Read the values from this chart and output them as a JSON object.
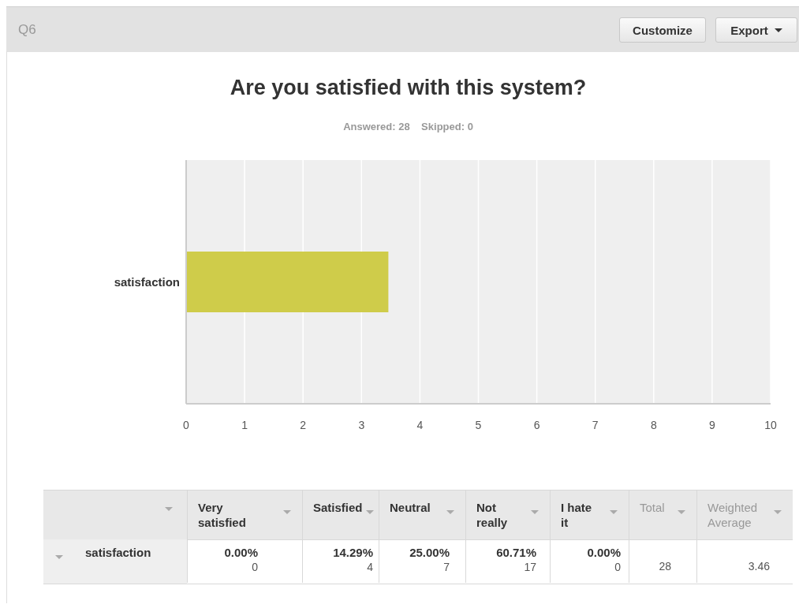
{
  "chart_data": {
    "type": "bar",
    "orientation": "horizontal",
    "title": "Are you satisfied with this system?",
    "subtitle": "Answered: 28    Skipped: 0",
    "categories": [
      "satisfaction"
    ],
    "values": [
      3.46
    ],
    "color": "#cfcc4a",
    "xlim": [
      0,
      10
    ],
    "xticks": [
      0,
      1,
      2,
      3,
      4,
      5,
      6,
      7,
      8,
      9,
      10
    ],
    "grid": "x",
    "annotations": [
      "Q6",
      "Customize",
      "Export",
      "Very satisfied",
      "Satisfied",
      "Neutral",
      "Not really",
      "I hate it",
      "Total",
      "Weighted Average",
      "0.00%",
      "0",
      "14.29%",
      "4",
      "25.00%",
      "7",
      "60.71%",
      "17",
      "0.00%",
      "0",
      "28",
      "3.46"
    ]
  }
}
